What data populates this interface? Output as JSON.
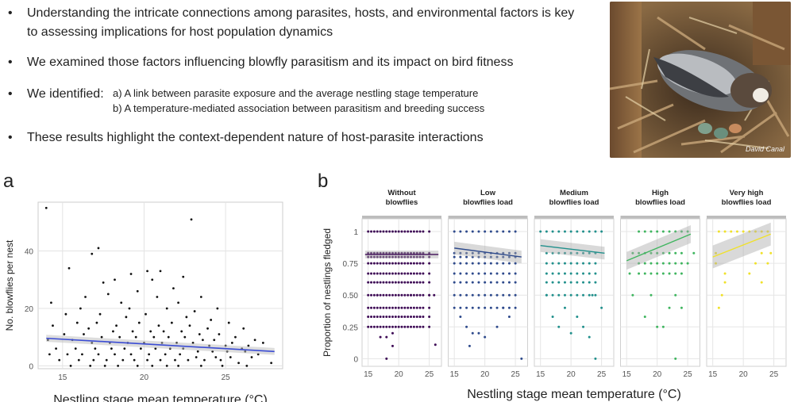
{
  "bullets": [
    {
      "line1": "Understanding the intricate connections among parasites, hosts, and environmental factors is key",
      "line2": "to assessing implications for host population dynamics"
    },
    {
      "line1": "We examined those factors influencing blowfly parasitism and its impact on bird fitness"
    },
    {
      "line1": "We identified:",
      "sub_a": "a) A link between parasite exposure and the average nestling stage temperature",
      "sub_b": "b) A temperature-mediated association between parasitism and breeding success"
    },
    {
      "line1": "These results highlight the context-dependent nature of host-parasite interactions"
    }
  ],
  "bullet_symbol": "•",
  "photo": {
    "credit": "David Canal",
    "icon": "nestling-photo"
  },
  "panel_a": {
    "letter": "a"
  },
  "panel_b": {
    "letter": "b"
  },
  "chart_data": [
    {
      "type": "scatter",
      "title": "",
      "xlabel": "Nestling stage mean temperature (°C)",
      "ylabel": "No. blowflies per nest",
      "xlim": [
        13.5,
        28.5
      ],
      "ylim": [
        -1,
        57
      ],
      "xticks": [
        15,
        20,
        25
      ],
      "yticks": [
        0,
        20,
        40
      ],
      "grid": true,
      "fit": {
        "type": "linear",
        "x": [
          14,
          28
        ],
        "y": [
          9.6,
          5.0
        ],
        "color": "#3b4cd4"
      },
      "point_color": "#111111",
      "points": [
        [
          14,
          55
        ],
        [
          22.9,
          51
        ],
        [
          17.2,
          41
        ],
        [
          16.8,
          39
        ],
        [
          20.2,
          33
        ],
        [
          15.4,
          34
        ],
        [
          19.2,
          32
        ],
        [
          21,
          33
        ],
        [
          18.2,
          30
        ],
        [
          22.4,
          31
        ],
        [
          17.5,
          29
        ],
        [
          20.5,
          30
        ],
        [
          23.5,
          24
        ],
        [
          16.4,
          24
        ],
        [
          19.6,
          26
        ],
        [
          21.8,
          27
        ],
        [
          14.3,
          22
        ],
        [
          17.8,
          25
        ],
        [
          20.8,
          24
        ],
        [
          18.6,
          22
        ],
        [
          22.1,
          22
        ],
        [
          24.5,
          20
        ],
        [
          16.1,
          20
        ],
        [
          15.2,
          18
        ],
        [
          19.1,
          20
        ],
        [
          21.4,
          20
        ],
        [
          23.1,
          19
        ],
        [
          17.3,
          18
        ],
        [
          18.9,
          17
        ],
        [
          20.1,
          18
        ],
        [
          22.6,
          17
        ],
        [
          24.1,
          16
        ],
        [
          25.2,
          15
        ],
        [
          26.1,
          13
        ],
        [
          15.9,
          15
        ],
        [
          17.1,
          15
        ],
        [
          18.3,
          14
        ],
        [
          19.7,
          15
        ],
        [
          20.9,
          14
        ],
        [
          21.7,
          15
        ],
        [
          22.8,
          14
        ],
        [
          23.9,
          13
        ],
        [
          14.4,
          14
        ],
        [
          16.6,
          13
        ],
        [
          18.1,
          12
        ],
        [
          19.3,
          12
        ],
        [
          20.4,
          12
        ],
        [
          21.2,
          12
        ],
        [
          22.3,
          12
        ],
        [
          23.4,
          11
        ],
        [
          24.6,
          11
        ],
        [
          25.6,
          10
        ],
        [
          26.8,
          9
        ],
        [
          27.3,
          8
        ],
        [
          15.1,
          11
        ],
        [
          16.3,
          11
        ],
        [
          17.4,
          10
        ],
        [
          18.5,
          10
        ],
        [
          19.5,
          10
        ],
        [
          20.6,
          10
        ],
        [
          21.5,
          10
        ],
        [
          22.5,
          10
        ],
        [
          23.6,
          9
        ],
        [
          24.3,
          9
        ],
        [
          25.4,
          8
        ],
        [
          26.4,
          7
        ],
        [
          14.1,
          9
        ],
        [
          15.6,
          9
        ],
        [
          16.8,
          8
        ],
        [
          17.9,
          8
        ],
        [
          19,
          8
        ],
        [
          20,
          8
        ],
        [
          21.1,
          8
        ],
        [
          22,
          8
        ],
        [
          23,
          8
        ],
        [
          24,
          7
        ],
        [
          25,
          7
        ],
        [
          26,
          6
        ],
        [
          14.6,
          6
        ],
        [
          15.8,
          6
        ],
        [
          17,
          6
        ],
        [
          18,
          6
        ],
        [
          18.8,
          6
        ],
        [
          19.8,
          6
        ],
        [
          20.7,
          6
        ],
        [
          21.6,
          6
        ],
        [
          22.4,
          6
        ],
        [
          23.3,
          5
        ],
        [
          24.2,
          5
        ],
        [
          25.1,
          5
        ],
        [
          26.2,
          5
        ],
        [
          27,
          4
        ],
        [
          14.2,
          4
        ],
        [
          15.3,
          4
        ],
        [
          16.2,
          4
        ],
        [
          17.2,
          4
        ],
        [
          18.2,
          4
        ],
        [
          19.2,
          4
        ],
        [
          20.3,
          4
        ],
        [
          21.3,
          4
        ],
        [
          22.2,
          4
        ],
        [
          23.2,
          3
        ],
        [
          24.4,
          3
        ],
        [
          25.3,
          3
        ],
        [
          26.6,
          3
        ],
        [
          14.8,
          2
        ],
        [
          16,
          2
        ],
        [
          16.9,
          2
        ],
        [
          17.7,
          2
        ],
        [
          18.7,
          2
        ],
        [
          19.4,
          2
        ],
        [
          20.2,
          2
        ],
        [
          21,
          2
        ],
        [
          21.9,
          2
        ],
        [
          22.7,
          2
        ],
        [
          23.7,
          2
        ],
        [
          24.7,
          2
        ],
        [
          25.8,
          1
        ],
        [
          27.8,
          1
        ],
        [
          15.5,
          0
        ],
        [
          16.7,
          0
        ],
        [
          17.6,
          0
        ],
        [
          18.4,
          0
        ],
        [
          19.6,
          0
        ],
        [
          20.5,
          0
        ],
        [
          21.4,
          0
        ],
        [
          22.1,
          0
        ],
        [
          23.5,
          0
        ],
        [
          24.8,
          0
        ],
        [
          26.3,
          0
        ]
      ]
    },
    {
      "type": "scatter",
      "title": "",
      "xlabel": "Nestling stage mean temperature (°C)",
      "ylabel": "Proportion of nestlings fledged",
      "xlim": [
        14,
        27
      ],
      "ylim": [
        -0.06,
        1.1
      ],
      "xticks": [
        15,
        20,
        25
      ],
      "yticks": [
        0,
        0.25,
        0.5,
        0.75,
        1
      ],
      "ytick_labels": [
        "0",
        "0.25",
        "0.50",
        "0.75",
        "1"
      ],
      "grid": true,
      "facets": [
        {
          "label_l1": "Without",
          "label_l2": "blowflies",
          "color": "#3d0a55",
          "fit": {
            "x": [
              14.5,
              26.5
            ],
            "y": [
              0.82,
              0.82
            ],
            "band": 0.03
          },
          "x": [
            15,
            15.5,
            16,
            16.5,
            17,
            17.5,
            18,
            18.5,
            19,
            19.5,
            20,
            20.5,
            21,
            21.5,
            22,
            22.5,
            23,
            23.5,
            24,
            25
          ],
          "levels": [
            1,
            0.83,
            0.8,
            0.75,
            0.67,
            0.6,
            0.5,
            0.4,
            0.33,
            0.25
          ],
          "extra": [
            [
              16.5,
              0.5
            ],
            [
              22,
              0.5
            ],
            [
              23.5,
              0.33
            ],
            [
              25,
              0.5
            ],
            [
              26,
              0.11
            ],
            [
              25.8,
              0.5
            ],
            [
              19,
              0.2
            ],
            [
              18,
              0.17
            ],
            [
              17,
              0.17
            ],
            [
              19,
              0.1
            ],
            [
              18,
              0
            ]
          ]
        },
        {
          "label_l1": "Low",
          "label_l2": "blowflies load",
          "color": "#2e4a8c",
          "fit": {
            "x": [
              15,
              26
            ],
            "y": [
              0.87,
              0.8
            ],
            "band": 0.05
          },
          "x": [
            15,
            16,
            17,
            18,
            19,
            20,
            21,
            22,
            23,
            24,
            25
          ],
          "levels": [
            1,
            0.83,
            0.8,
            0.75,
            0.67,
            0.6,
            0.5,
            0.4
          ],
          "extra": [
            [
              17,
              0.25
            ],
            [
              18,
              0.2
            ],
            [
              19,
              0.2
            ],
            [
              20,
              0.17
            ],
            [
              22,
              0.25
            ],
            [
              24,
              0.33
            ],
            [
              16,
              0.33
            ],
            [
              26,
              0.0
            ],
            [
              17.5,
              0.1
            ],
            [
              23,
              0.4
            ]
          ]
        },
        {
          "label_l1": "Medium",
          "label_l2": "blowflies load",
          "color": "#21908c",
          "fit": {
            "x": [
              15,
              25.5
            ],
            "y": [
              0.89,
              0.83
            ],
            "band": 0.05
          },
          "x": [
            16,
            17,
            18,
            19,
            20,
            21,
            22,
            23,
            24
          ],
          "levels": [
            1,
            0.83,
            0.75,
            0.67,
            0.6,
            0.5
          ],
          "extra": [
            [
              15,
              1
            ],
            [
              25,
              1
            ],
            [
              17,
              0.33
            ],
            [
              18,
              0.25
            ],
            [
              19,
              0.4
            ],
            [
              20,
              0.2
            ],
            [
              21,
              0.33
            ],
            [
              22,
              0.25
            ],
            [
              23,
              0.17
            ],
            [
              24,
              0.0
            ],
            [
              16,
              0.5
            ],
            [
              25,
              0.4
            ],
            [
              23.5,
              0.5
            ]
          ]
        },
        {
          "label_l1": "High",
          "label_l2": "blowflies load",
          "color": "#3fb55f",
          "fit": {
            "x": [
              15,
              25.5
            ],
            "y": [
              0.77,
              0.98
            ],
            "band": 0.07
          },
          "x": [
            17,
            18,
            19,
            20,
            21,
            22,
            23,
            24
          ],
          "levels": [
            1,
            0.83,
            0.75,
            0.67
          ],
          "extra": [
            [
              16,
              0.83
            ],
            [
              15.5,
              0.67
            ],
            [
              16,
              0.5
            ],
            [
              18,
              0.33
            ],
            [
              19,
              0.5
            ],
            [
              20,
              0.25
            ],
            [
              21,
              0.25
            ],
            [
              22,
              0.4
            ],
            [
              23,
              0.5
            ],
            [
              24,
              0.4
            ],
            [
              23,
              0.0
            ],
            [
              25,
              1
            ],
            [
              25,
              0.75
            ],
            [
              26,
              0.83
            ]
          ]
        },
        {
          "label_l1": "Very high",
          "label_l2": "blowflies load",
          "color": "#f0e12a",
          "fit": {
            "x": [
              15,
              24.5
            ],
            "y": [
              0.8,
              0.98
            ],
            "band": 0.09
          },
          "x": [
            16,
            17,
            18,
            19,
            20,
            21,
            22,
            23,
            24
          ],
          "levels": [
            1
          ],
          "extra": [
            [
              15.5,
              0.83
            ],
            [
              17,
              0.67
            ],
            [
              16.5,
              0.5
            ],
            [
              16,
              0.4
            ],
            [
              17,
              0.6
            ],
            [
              21,
              0.67
            ],
            [
              22,
              0.75
            ],
            [
              23,
              0.83
            ],
            [
              24,
              0.75
            ],
            [
              23,
              0.6
            ],
            [
              15.5,
              0.75
            ],
            [
              24.5,
              0.83
            ]
          ]
        }
      ]
    }
  ]
}
